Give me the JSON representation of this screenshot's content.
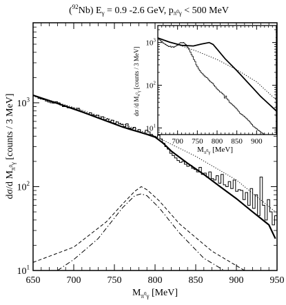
{
  "title": "(92Nb) Eγ = 0.9 -2.6 GeV,  pπ0γ < 500 MeV",
  "title_parts": {
    "nucleus_sup": "92",
    "nucleus": "Nb) E",
    "egamma_sub": "γ",
    "energy": " = 0.9 -2.6 GeV,  p",
    "p_sub": "π",
    "p_sub_sup": "0",
    "p_sub2": "γ",
    "cut": " < 500 MeV"
  },
  "main_ylabel": {
    "a": "dσ/d M",
    "sub": "π",
    "subsup": "0",
    "sub2": "γ",
    "b": " [counts / 3 MeV]"
  },
  "main_xlabel": {
    "a": "M",
    "sub": "π",
    "subsup": "0",
    "sub2": "γ",
    "b": "  [MeV]"
  },
  "inset_ylabel": {
    "a": "dσ /d M",
    "sub": "π",
    "subsup": "0",
    "sub2": "γ",
    "b": " [counts / 3 MeV]"
  },
  "inset_xlabel": {
    "a": "M",
    "sub": "π",
    "subsup": "0",
    "sub2": "γ",
    "b": "  [MeV]"
  },
  "chart_data": [
    {
      "type": "line",
      "name": "main",
      "xlim": [
        650,
        950
      ],
      "ylim": [
        10,
        9000
      ],
      "yscale": "log",
      "x_ticks": [
        "650",
        "700",
        "750",
        "800",
        "850",
        "900",
        "950"
      ],
      "y_ticks": [
        {
          "base": "10",
          "exp": "1"
        },
        {
          "base": "10",
          "exp": "2"
        },
        {
          "base": "10",
          "exp": "3"
        }
      ],
      "histogram": {
        "bin_width": 3,
        "x_start": 650,
        "values": [
          1210,
          1180,
          1130,
          1110,
          1090,
          1050,
          1020,
          1000,
          990,
          1030,
          1000,
          940,
          900,
          920,
          870,
          880,
          860,
          830,
          860,
          800,
          780,
          760,
          740,
          760,
          720,
          700,
          710,
          660,
          680,
          630,
          640,
          600,
          620,
          570,
          590,
          560,
          550,
          520,
          560,
          500,
          490,
          510,
          460,
          480,
          440,
          430,
          470,
          450,
          420,
          400,
          390,
          410,
          370,
          330,
          300,
          280,
          250,
          235,
          220,
          205,
          195,
          200,
          185,
          175,
          180,
          165,
          160,
          150,
          170,
          140,
          145,
          130,
          150,
          125,
          120,
          135,
          110,
          140,
          105,
          100,
          115,
          95,
          120,
          88,
          92,
          90,
          70,
          85,
          60,
          95,
          55,
          80,
          45,
          130,
          60,
          40,
          70,
          50,
          35,
          45
        ]
      },
      "fit_total": {
        "x": [
          650,
          670,
          690,
          710,
          730,
          750,
          760,
          770,
          780,
          790,
          800,
          810,
          820,
          840,
          860,
          880,
          900,
          920,
          940,
          948
        ],
        "y": [
          1230,
          1060,
          910,
          780,
          660,
          560,
          515,
          480,
          450,
          420,
          390,
          330,
          265,
          190,
          140,
          100,
          72,
          50,
          35,
          24
        ]
      },
      "fit_background": {
        "x": [
          650,
          700,
          750,
          800,
          850,
          900,
          948
        ],
        "y": [
          1230,
          880,
          610,
          400,
          230,
          120,
          50
        ]
      },
      "signal_dashed": {
        "x": [
          650,
          700,
          740,
          760,
          775,
          783,
          790,
          805,
          830,
          870,
          910,
          948
        ],
        "y": [
          12.5,
          19,
          38,
          62,
          88,
          100,
          92,
          68,
          36,
          17,
          10,
          7.5
        ]
      },
      "signal_dashdot": {
        "x": [
          680,
          700,
          730,
          760,
          775,
          783,
          790,
          805,
          830,
          860,
          885
        ],
        "y": [
          10,
          13.5,
          24,
          56,
          78,
          82,
          78,
          56,
          28,
          14,
          10
        ]
      }
    },
    {
      "type": "line",
      "name": "inset",
      "xlim": [
        650,
        950
      ],
      "ylim": [
        7,
        2500
      ],
      "yscale": "log",
      "x_ticks": [
        "700",
        "750",
        "800",
        "850",
        "900"
      ],
      "y_ticks": [
        {
          "base": "10",
          "exp": "1"
        },
        {
          "base": "10",
          "exp": "2"
        },
        {
          "base": "10",
          "exp": "3"
        }
      ],
      "histogram": {
        "bin_width": 3,
        "x_start": 650,
        "values": [
          1250,
          1150,
          1100,
          1050,
          980,
          950,
          900,
          870,
          830,
          800,
          820,
          780,
          800,
          770,
          810,
          830,
          860,
          900,
          960,
          1000,
          980,
          1010,
          960,
          900,
          820,
          760,
          680,
          600,
          520,
          470,
          400,
          360,
          300,
          270,
          240,
          220,
          200,
          190,
          175,
          165,
          155,
          150,
          140,
          130,
          120,
          115,
          110,
          100,
          92,
          85,
          80,
          75,
          70,
          68,
          64,
          60,
          50,
          56,
          48,
          45,
          40,
          38,
          36,
          34,
          32,
          30,
          28,
          26,
          24,
          22,
          21,
          20,
          19,
          18,
          17,
          16,
          15,
          14,
          13,
          12,
          11,
          10.5,
          10,
          9.5,
          9,
          8.6,
          8.2,
          7.8,
          7.5,
          7.2
        ]
      },
      "fit_total": {
        "x": [
          650,
          680,
          710,
          740,
          760,
          780,
          790,
          800,
          820,
          850,
          880,
          910,
          950
        ],
        "y": [
          1280,
          1020,
          860,
          830,
          920,
          1000,
          900,
          700,
          420,
          220,
          110,
          55,
          25
        ]
      },
      "fit_background": {
        "x": [
          650,
          700,
          750,
          800,
          850,
          900,
          950
        ],
        "y": [
          1280,
          900,
          620,
          400,
          230,
          120,
          45
        ]
      }
    }
  ]
}
